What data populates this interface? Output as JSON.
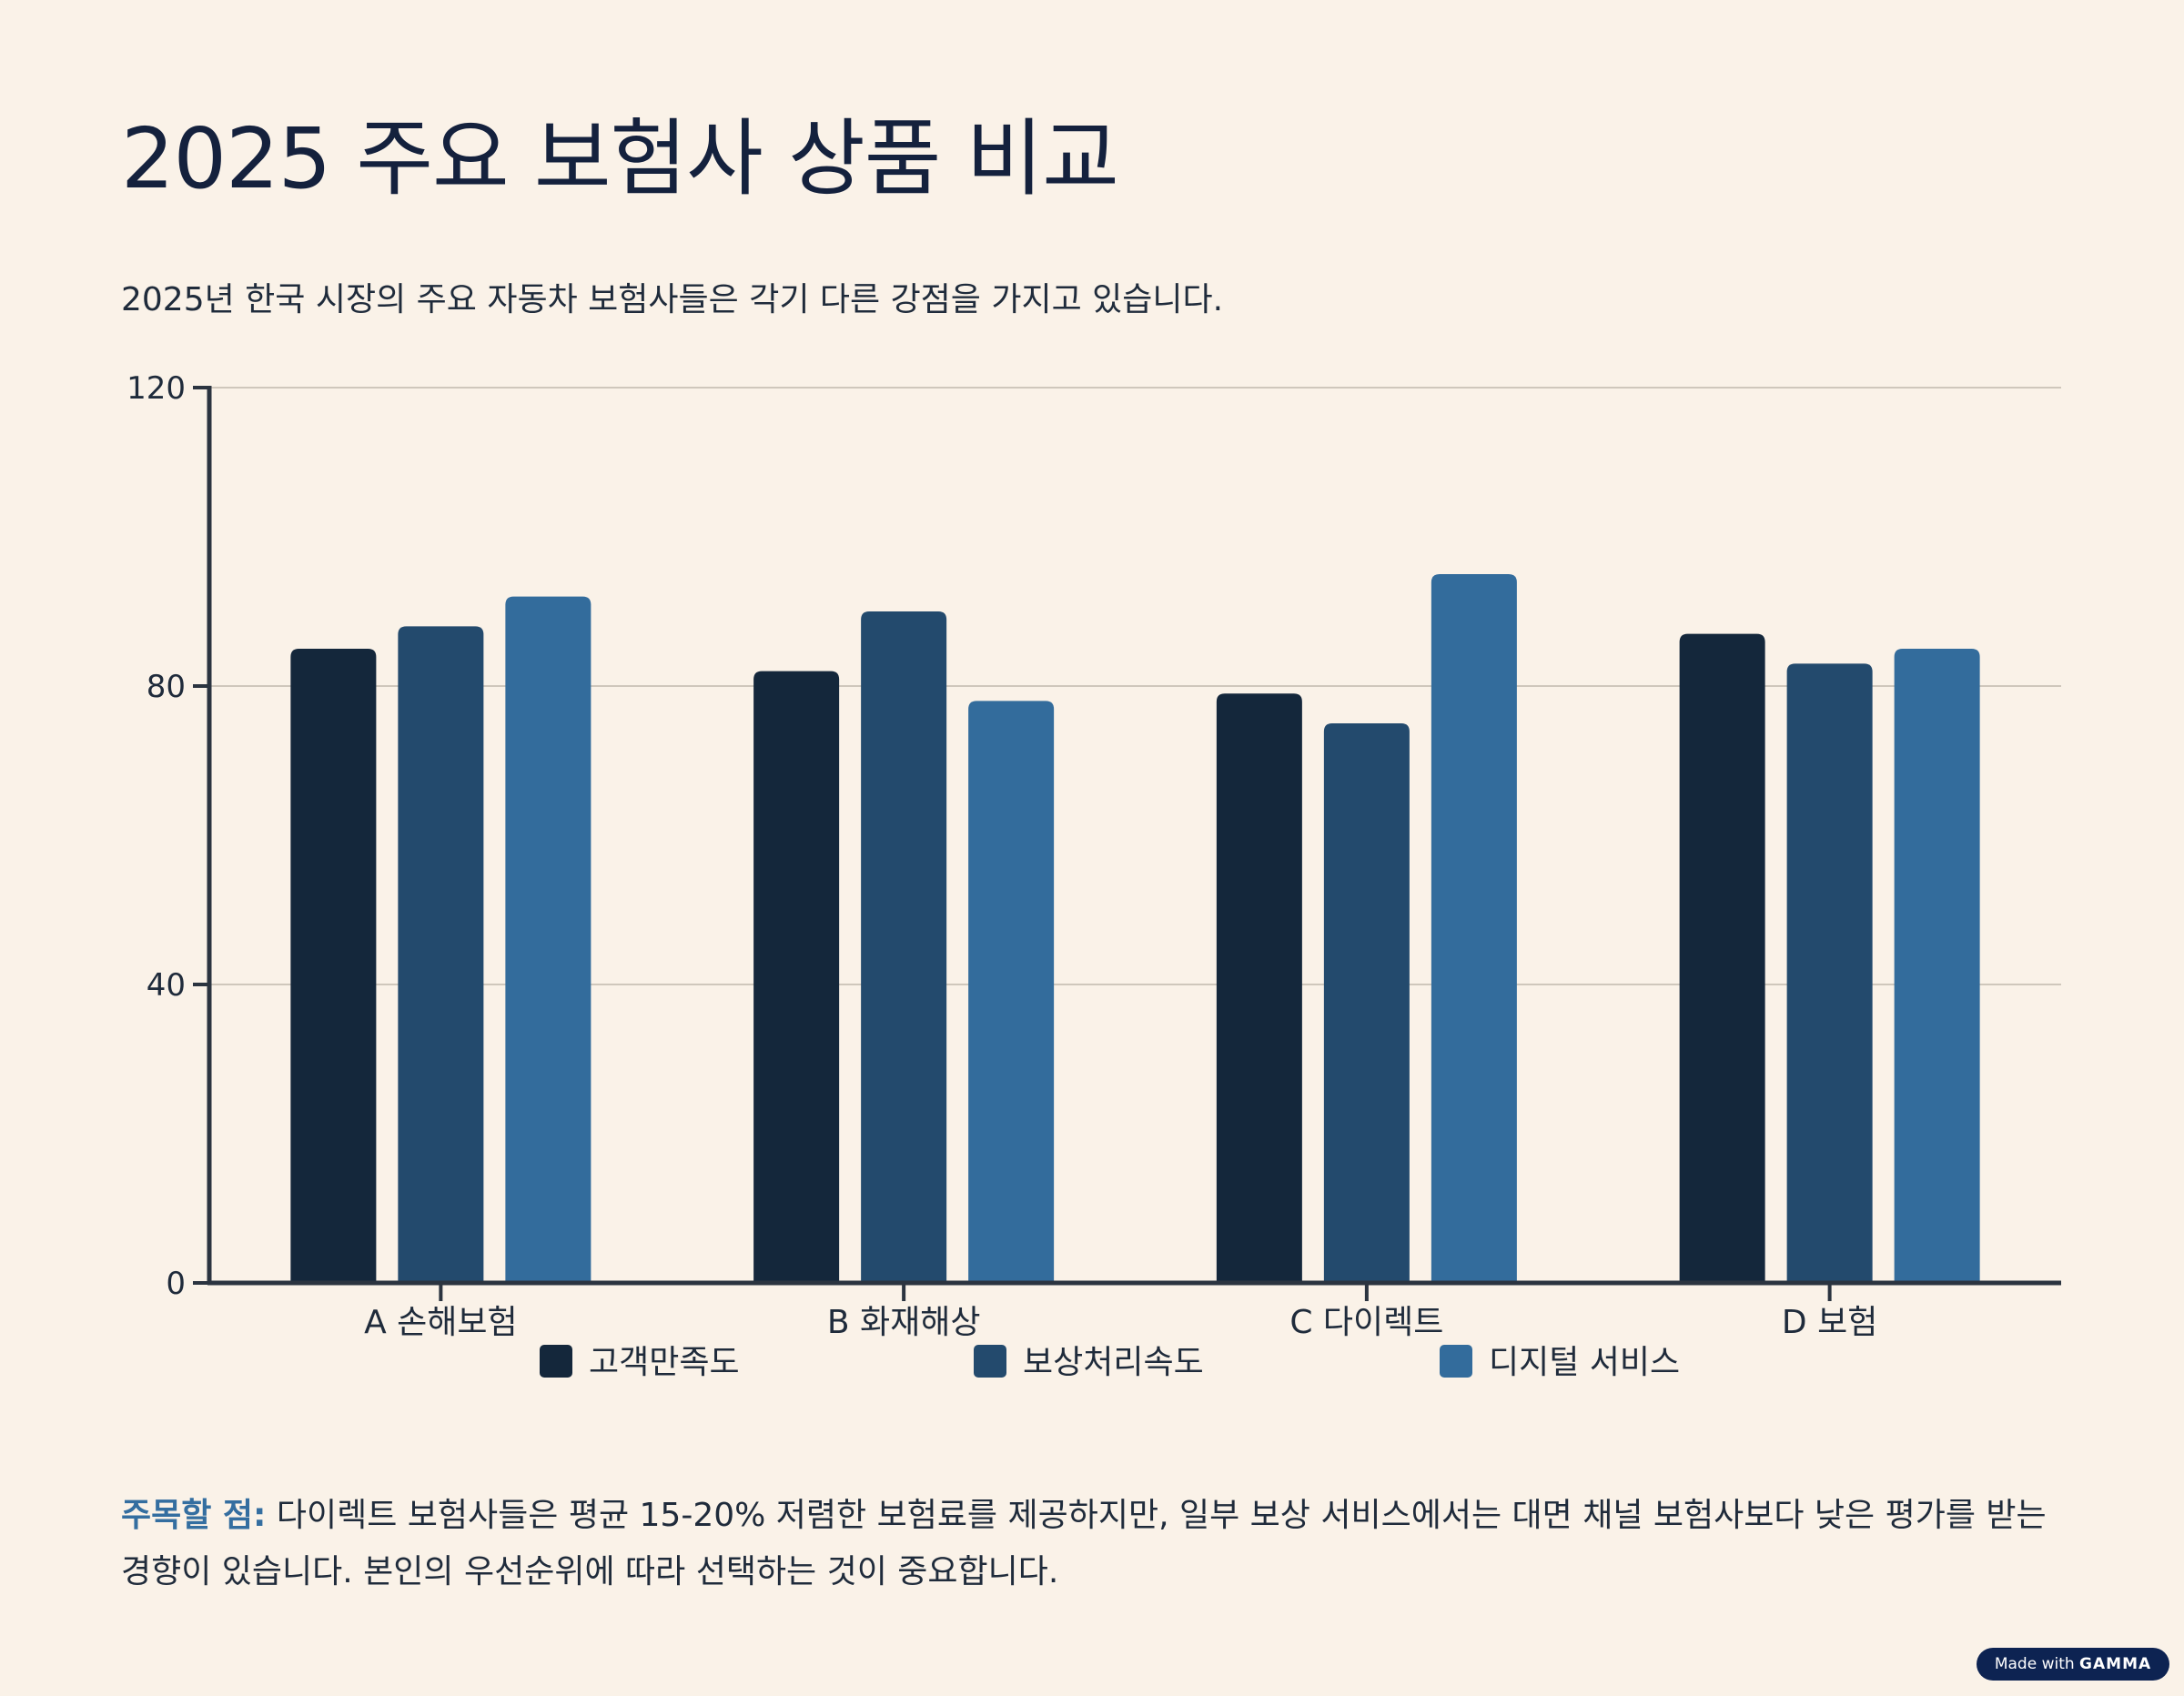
{
  "header": {
    "title": "2025 주요 보험사 상품 비교",
    "subtitle": "2025년 한국 시장의 주요 자동차 보험사들은 각기 다른 강점을 가지고 있습니다."
  },
  "chart_data": {
    "type": "bar",
    "categories": [
      "A 손해보험",
      "B 화재해상",
      "C 다이렉트",
      "D 보험"
    ],
    "series": [
      {
        "name": "고객만족도",
        "values": [
          85,
          82,
          79,
          87
        ],
        "color": "#14273b"
      },
      {
        "name": "보상처리속도",
        "values": [
          88,
          90,
          75,
          83
        ],
        "color": "#234a6d"
      },
      {
        "name": "디지털 서비스",
        "values": [
          92,
          78,
          95,
          85
        ],
        "color": "#336c9c"
      }
    ],
    "ylim": [
      0,
      120
    ],
    "yticks": [
      0,
      40,
      80,
      120
    ],
    "xlabel": "",
    "ylabel": "",
    "grid": true,
    "legend": "bottom"
  },
  "note": {
    "label": "주목할 점:",
    "text": " 다이렉트 보험사들은 평균 15-20% 저렴한 보험료를 제공하지만, 일부 보상 서비스에서는 대면 채널 보험사보다 낮은 평가를 받는 경향이 있습니다. 본인의 우선순위에 따라 선택하는 것이 중요합니다."
  },
  "badge": {
    "prefix": "Made with ",
    "brand": "GAMMA"
  }
}
